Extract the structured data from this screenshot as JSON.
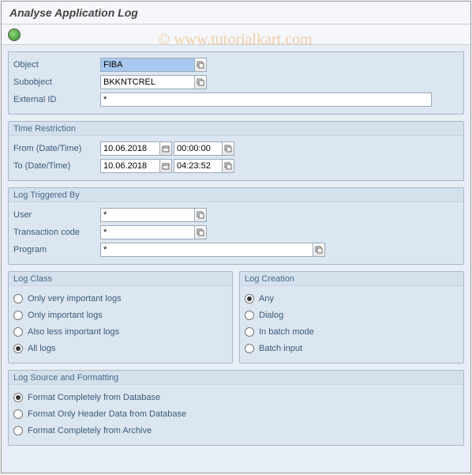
{
  "title": "Analyse Application Log",
  "watermark": "© www.tutorialkart.com",
  "colors": {
    "panel_bg": "#dce6f0",
    "panel_border": "#a8b8c8",
    "header_text": "#4a6a8a",
    "label_text": "#3a5a7a",
    "page_bg": "#e8eef5"
  },
  "object_group": {
    "object": {
      "label": "Object",
      "value": "FIBA"
    },
    "subobject": {
      "label": "Subobject",
      "value": "BKKNTCREL"
    },
    "external_id": {
      "label": "External ID",
      "value": "*"
    }
  },
  "time_restriction": {
    "title": "Time Restriction",
    "from": {
      "label": "From (Date/Time)",
      "date": "10.06.2018",
      "time": "00:00:00"
    },
    "to": {
      "label": "To (Date/Time)",
      "date": "10.06.2018",
      "time": "04:23:52"
    }
  },
  "log_triggered_by": {
    "title": "Log Triggered By",
    "user": {
      "label": "User",
      "value": "*"
    },
    "tcode": {
      "label": "Transaction code",
      "value": "*"
    },
    "program": {
      "label": "Program",
      "value": "*"
    }
  },
  "log_class": {
    "title": "Log Class",
    "options": [
      {
        "label": "Only very important logs",
        "checked": false
      },
      {
        "label": "Only important logs",
        "checked": false
      },
      {
        "label": "Also less important logs",
        "checked": false
      },
      {
        "label": "All logs",
        "checked": true
      }
    ]
  },
  "log_creation": {
    "title": "Log Creation",
    "options": [
      {
        "label": "Any",
        "checked": true
      },
      {
        "label": "Dialog",
        "checked": false
      },
      {
        "label": "In batch mode",
        "checked": false
      },
      {
        "label": "Batch input",
        "checked": false
      }
    ]
  },
  "log_source": {
    "title": "Log Source and Formatting",
    "options": [
      {
        "label": "Format Completely from Database",
        "checked": true
      },
      {
        "label": "Format Only Header Data from Database",
        "checked": false
      },
      {
        "label": "Format Completely from Archive",
        "checked": false
      }
    ]
  }
}
